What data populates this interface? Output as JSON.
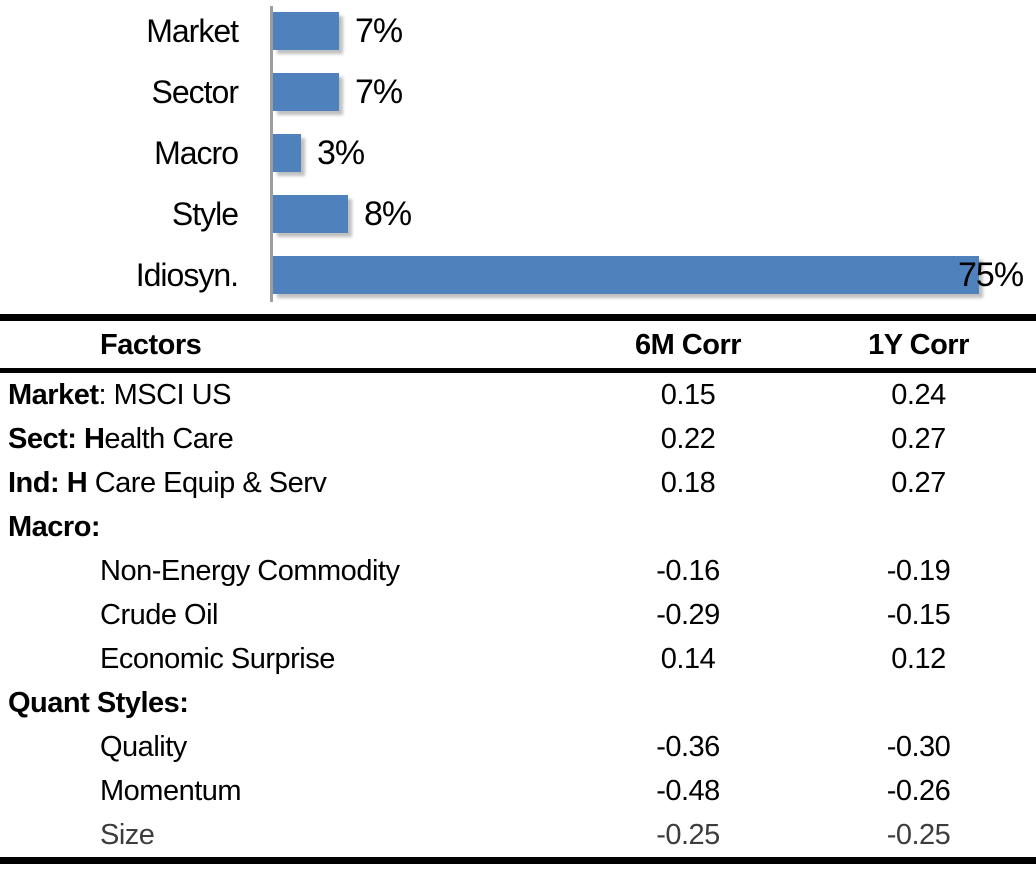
{
  "colors": {
    "bar_fill": "#4f81bd",
    "bar_shadow": "#bfbfbf",
    "axis_line": "#9d9d9d",
    "rule": "#000000",
    "text": "#000000"
  },
  "chart_data": {
    "type": "bar",
    "orientation": "horizontal",
    "title": "",
    "xlabel": "",
    "ylabel": "",
    "categories": [
      "Market",
      "Sector",
      "Macro",
      "Style",
      "Idiosyn."
    ],
    "values": [
      7,
      7,
      3,
      8,
      75
    ],
    "data_labels": [
      "7%",
      "7%",
      "3%",
      "8%",
      "75%"
    ],
    "unit": "%",
    "xlim": [
      0,
      81
    ],
    "grid": false,
    "legend": false,
    "bar_color": "#4f81bd"
  },
  "table": {
    "headers": [
      "Factors",
      "6M Corr",
      "1Y Corr"
    ],
    "rows": [
      {
        "segments": [
          {
            "text": "Market",
            "bold": true
          },
          {
            "text": ": MSCI US",
            "bold": false
          }
        ],
        "indent": false,
        "muted": false,
        "corr_6m": "0.15",
        "corr_1y": "0.24"
      },
      {
        "segments": [
          {
            "text": "Sect: H",
            "bold": true
          },
          {
            "text": "ealth Care",
            "bold": false
          }
        ],
        "indent": false,
        "muted": false,
        "corr_6m": "0.22",
        "corr_1y": "0.27"
      },
      {
        "segments": [
          {
            "text": "Ind: H",
            "bold": true
          },
          {
            "text": " Care Equip & Serv",
            "bold": false
          }
        ],
        "indent": false,
        "muted": false,
        "corr_6m": "0.18",
        "corr_1y": "0.27"
      },
      {
        "segments": [
          {
            "text": "Macro:",
            "bold": true
          }
        ],
        "indent": false,
        "muted": false,
        "corr_6m": "",
        "corr_1y": ""
      },
      {
        "segments": [
          {
            "text": "Non-Energy Commodity",
            "bold": false
          }
        ],
        "indent": true,
        "muted": false,
        "corr_6m": "-0.16",
        "corr_1y": "-0.19"
      },
      {
        "segments": [
          {
            "text": "Crude Oil",
            "bold": false
          }
        ],
        "indent": true,
        "muted": false,
        "corr_6m": "-0.29",
        "corr_1y": "-0.15"
      },
      {
        "segments": [
          {
            "text": "Economic Surprise",
            "bold": false
          }
        ],
        "indent": true,
        "muted": false,
        "corr_6m": "0.14",
        "corr_1y": "0.12"
      },
      {
        "segments": [
          {
            "text": "Quant Styles:",
            "bold": true
          }
        ],
        "indent": false,
        "muted": false,
        "corr_6m": "",
        "corr_1y": ""
      },
      {
        "segments": [
          {
            "text": "Quality",
            "bold": false
          }
        ],
        "indent": true,
        "muted": false,
        "corr_6m": "-0.36",
        "corr_1y": "-0.30"
      },
      {
        "segments": [
          {
            "text": "Momentum",
            "bold": false
          }
        ],
        "indent": true,
        "muted": false,
        "corr_6m": "-0.48",
        "corr_1y": "-0.26"
      },
      {
        "segments": [
          {
            "text": "Size",
            "bold": false
          }
        ],
        "indent": true,
        "muted": true,
        "corr_6m": "-0.25",
        "corr_1y": "-0.25"
      }
    ]
  }
}
